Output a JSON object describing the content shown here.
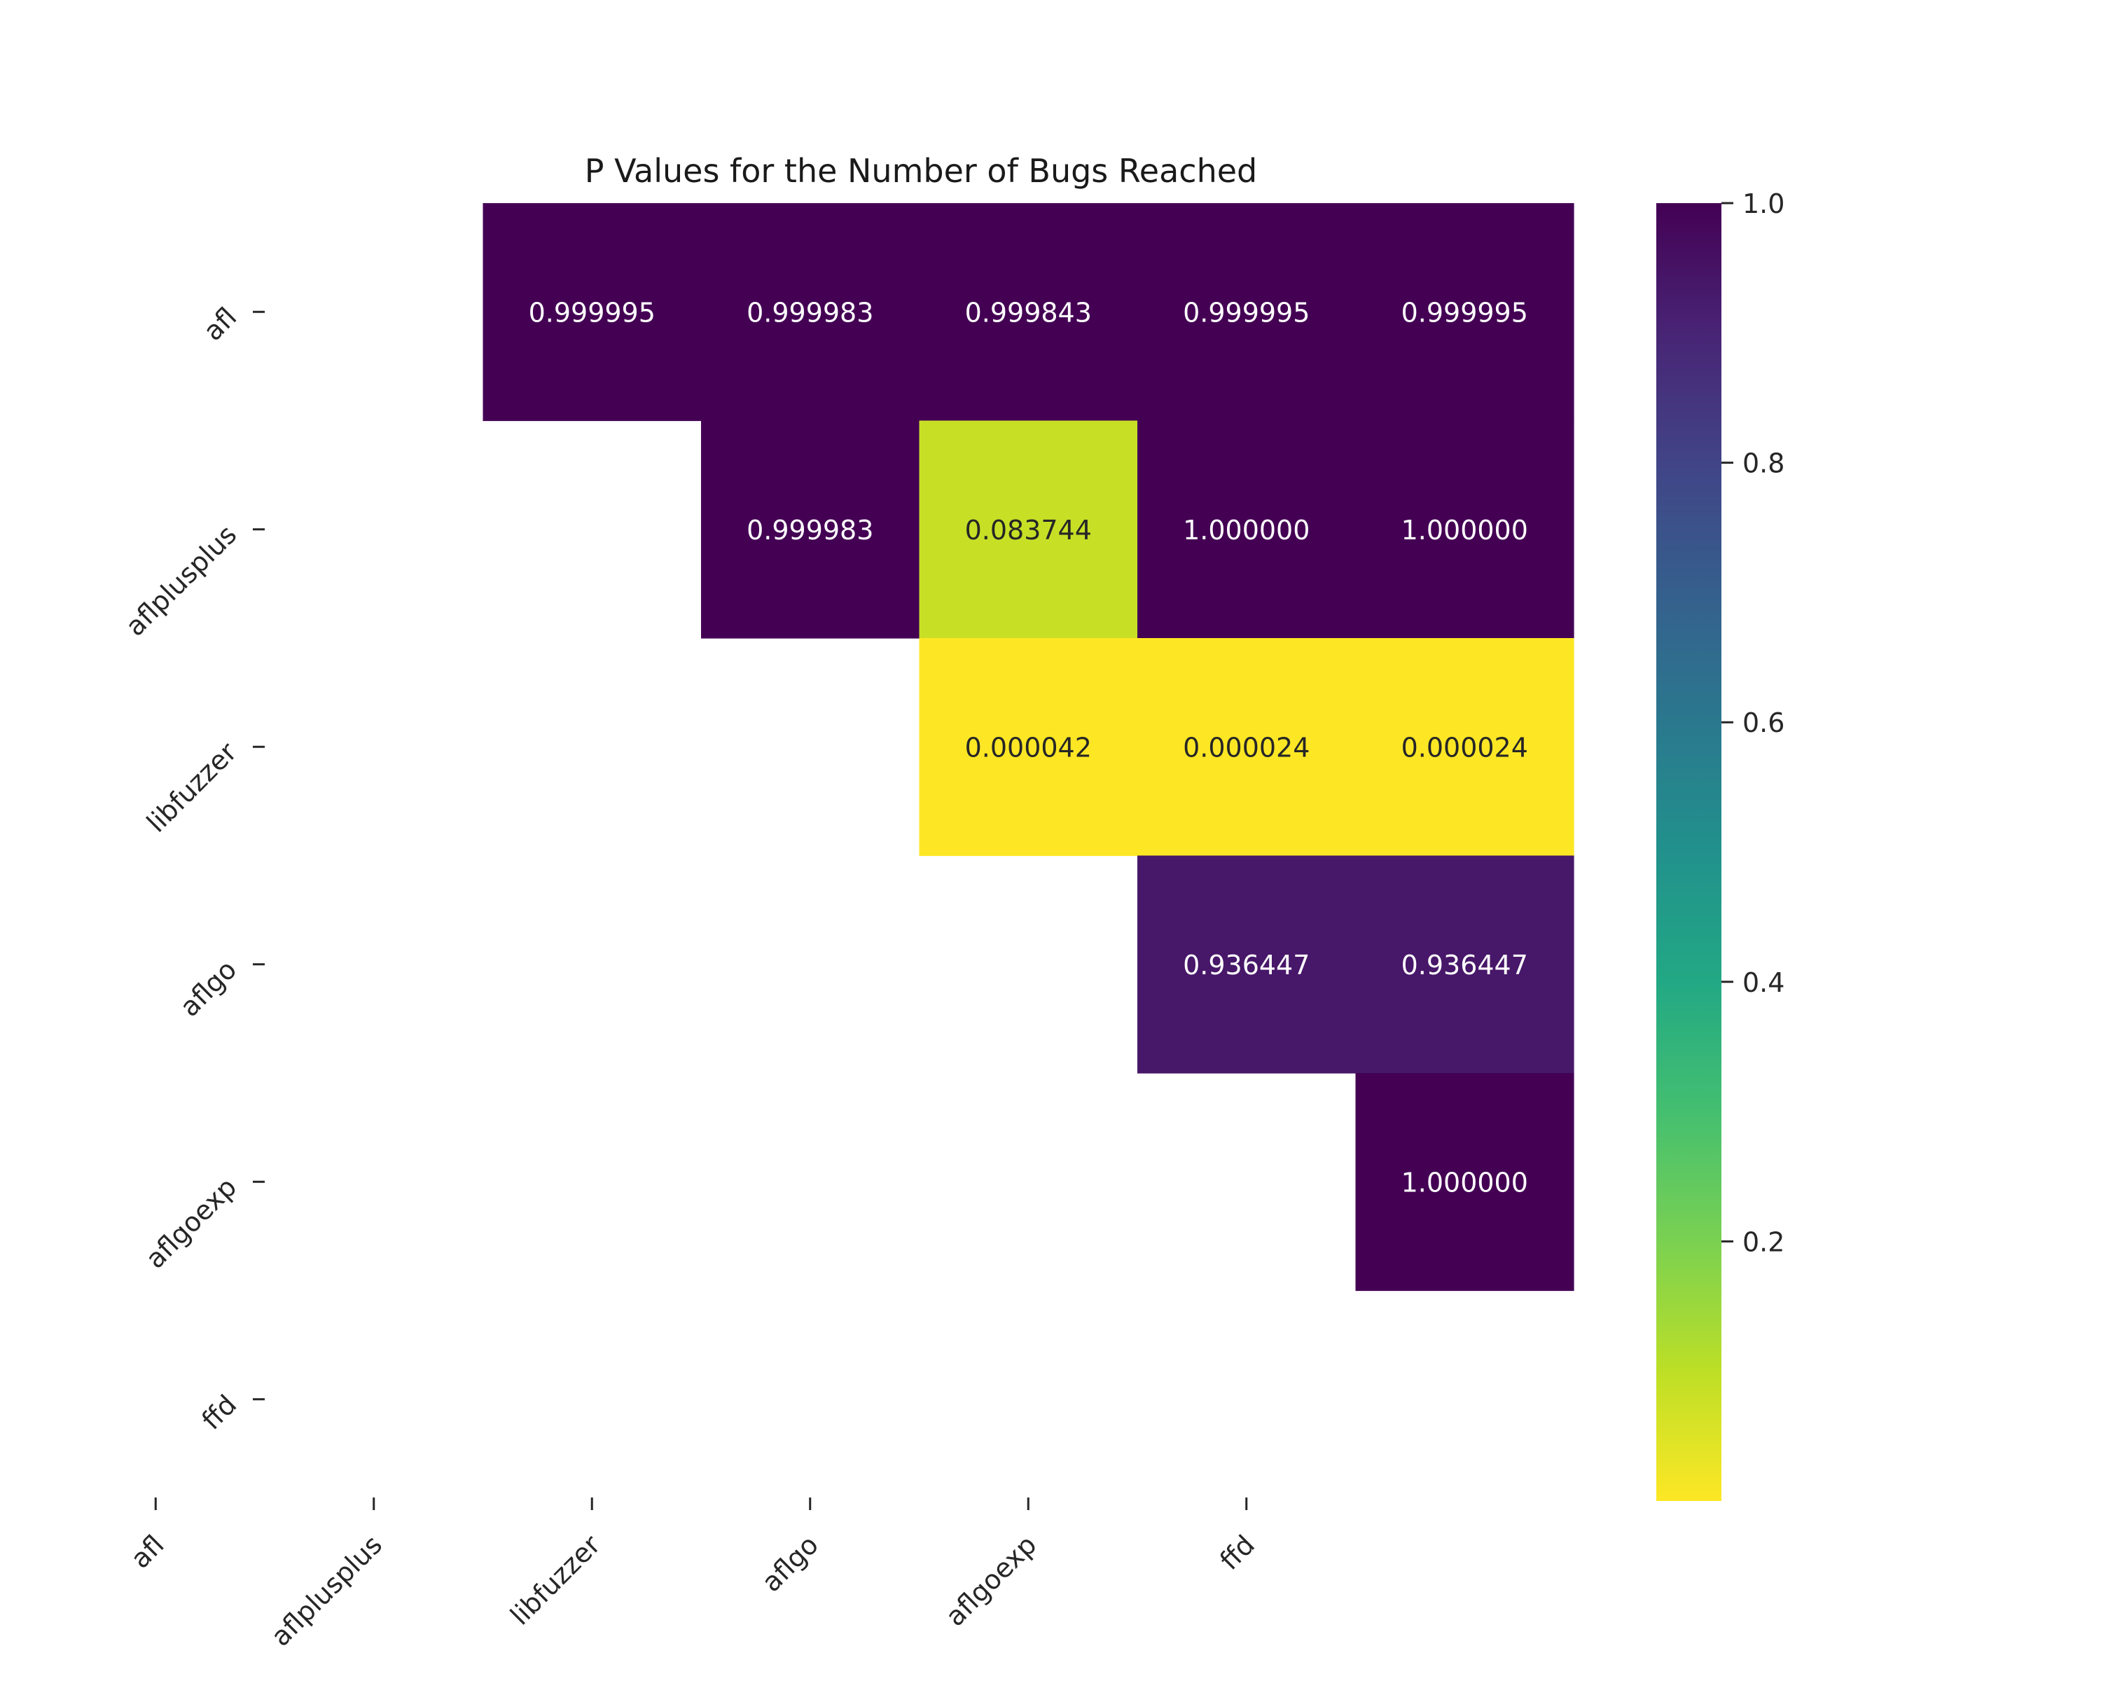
{
  "chart_data": {
    "type": "heatmap",
    "title": "P Values for the Number of Bugs Reached",
    "xlabel": "",
    "ylabel": "",
    "x_categories": [
      "afl",
      "aflplusplus",
      "libfuzzer",
      "aflgo",
      "aflgoexp",
      "ffd"
    ],
    "y_categories": [
      "afl",
      "aflplusplus",
      "libfuzzer",
      "aflgo",
      "aflgoexp",
      "ffd"
    ],
    "values": [
      [
        null,
        0.999995,
        0.999983,
        0.999843,
        0.999995,
        0.999995
      ],
      [
        null,
        null,
        0.999983,
        0.083744,
        1.0,
        1.0
      ],
      [
        null,
        null,
        null,
        4.2e-05,
        2.4e-05,
        2.4e-05
      ],
      [
        null,
        null,
        null,
        null,
        0.936447,
        0.936447
      ],
      [
        null,
        null,
        null,
        null,
        null,
        1.0
      ],
      [
        null,
        null,
        null,
        null,
        null,
        null
      ]
    ],
    "value_labels": [
      [
        null,
        "0.999995",
        "0.999983",
        "0.999843",
        "0.999995",
        "0.999995"
      ],
      [
        null,
        null,
        "0.999983",
        "0.083744",
        "1.000000",
        "1.000000"
      ],
      [
        null,
        null,
        null,
        "0.000042",
        "0.000024",
        "0.000024"
      ],
      [
        null,
        null,
        null,
        null,
        "0.936447",
        "0.936447"
      ],
      [
        null,
        null,
        null,
        null,
        null,
        "1.000000"
      ],
      [
        null,
        null,
        null,
        null,
        null,
        null
      ]
    ],
    "colormap": "viridis (reversed)",
    "colorbar": {
      "range": [
        0.0,
        1.0
      ],
      "tick_values": [
        0.2,
        0.4,
        0.6,
        0.8,
        1.0
      ],
      "tick_labels": [
        "0.2",
        "0.4",
        "0.6",
        "0.8",
        "1.0"
      ]
    },
    "grid": false
  }
}
